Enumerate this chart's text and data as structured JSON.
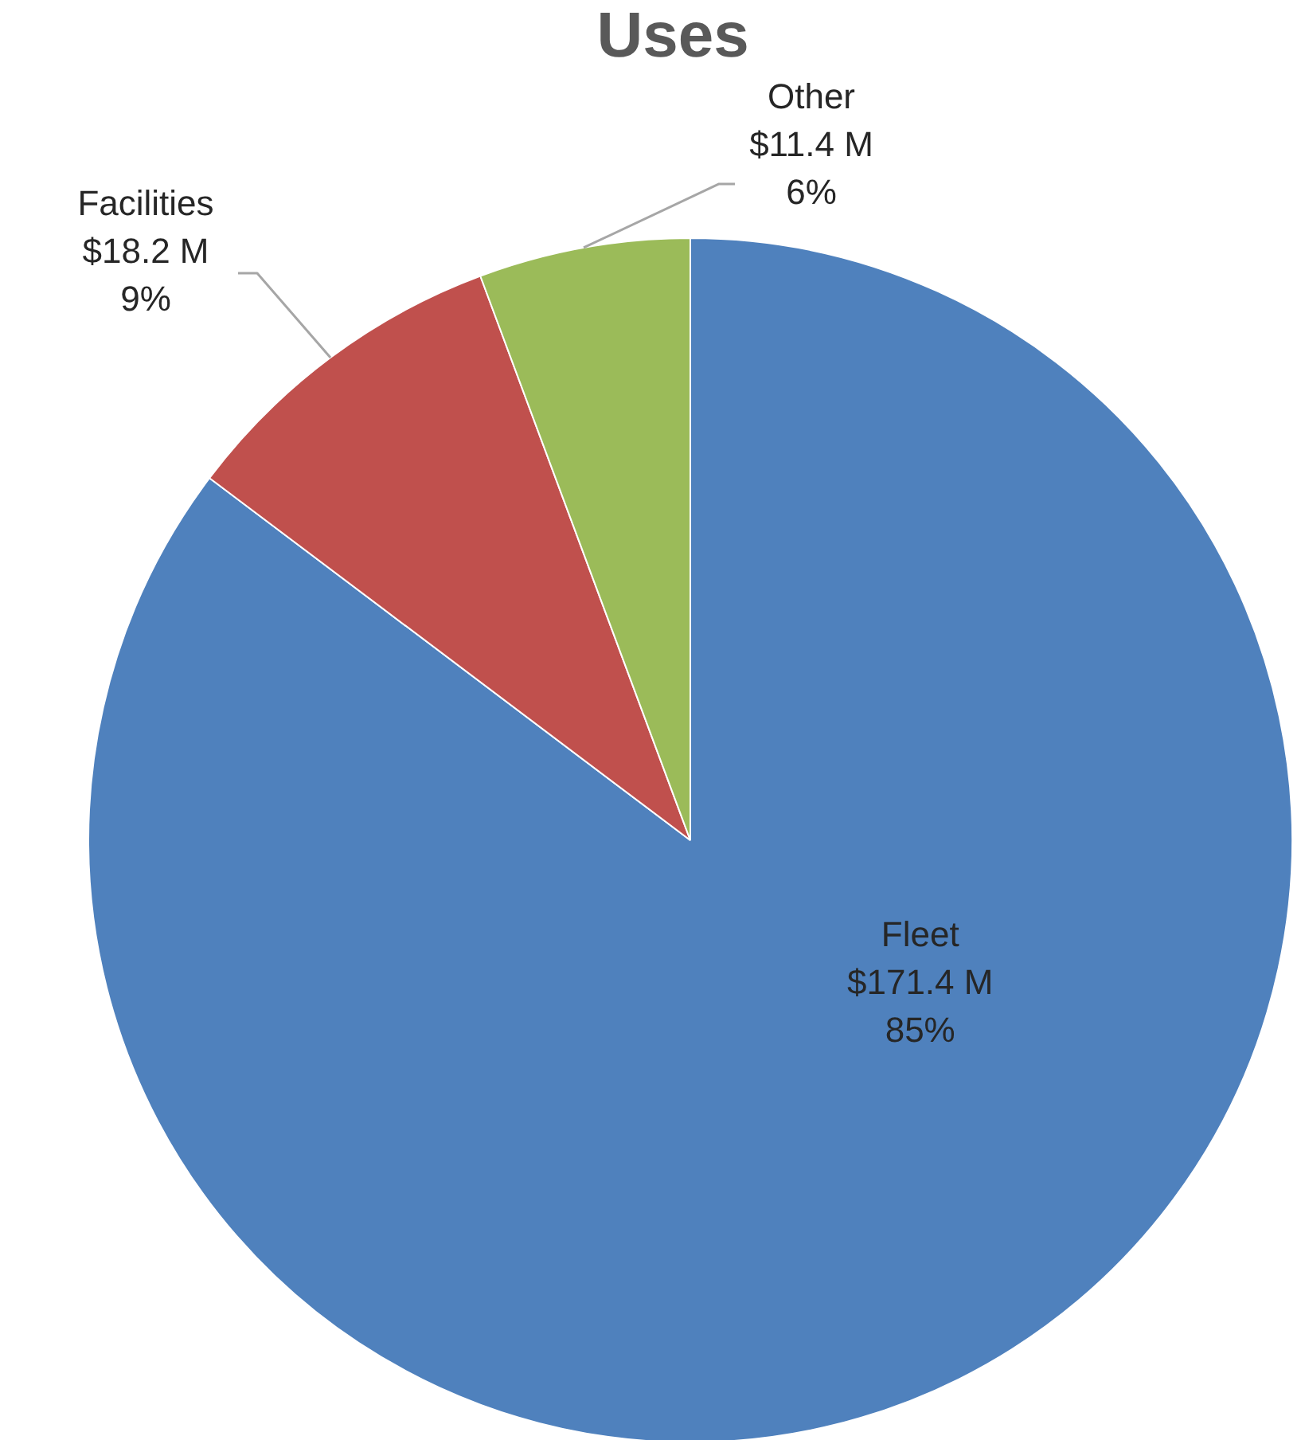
{
  "chart_data": {
    "type": "pie",
    "title": "Uses",
    "categories": [
      "Fleet",
      "Facilities",
      "Other"
    ],
    "values": [
      171.4,
      18.2,
      11.4
    ],
    "colors": [
      "#4f81bd",
      "#c0504d",
      "#9bbb59"
    ],
    "value_labels": [
      "$171.4 M\n85%",
      "$18.2 M\n9%",
      "$11.4 M\n6%"
    ]
  }
}
